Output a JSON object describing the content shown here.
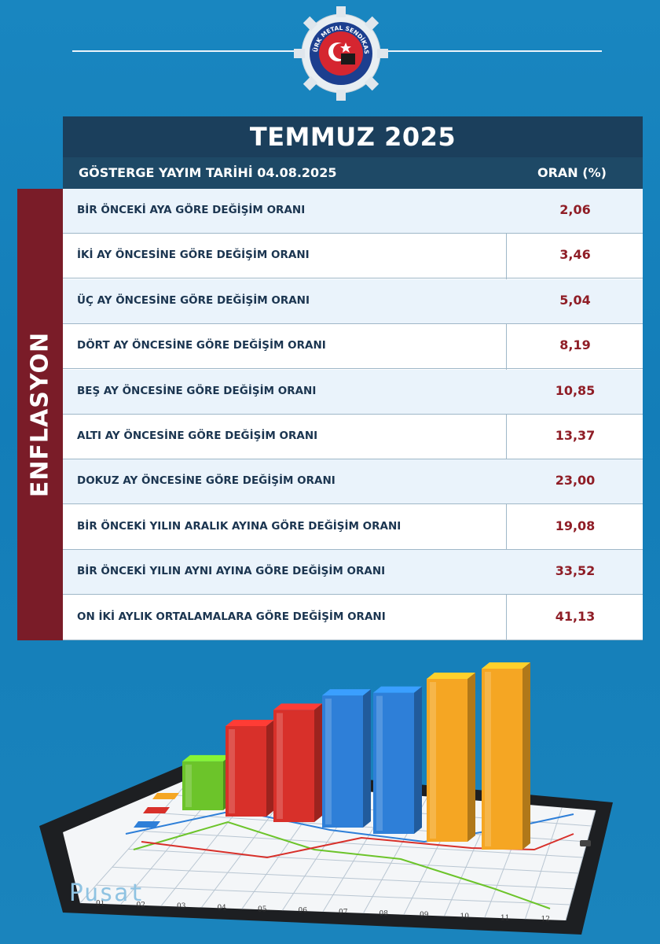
{
  "logo": {
    "text": "TÜRK METAL SENDİKASI",
    "icon": "turk-metal-sendikasi-logo"
  },
  "table": {
    "title": "TEMMUZ 2025",
    "header_left": "GÖSTERGE YAYIM TARİHİ 04.08.2025",
    "header_right": "ORAN (%)",
    "side_label": "ENFLASYON",
    "rows": [
      {
        "label": "BİR ÖNCEKİ AYA GÖRE DEĞİŞİM ORANI",
        "value": "2,06"
      },
      {
        "label": "İKİ AY ÖNCESİNE GÖRE DEĞİŞİM ORANI",
        "value": "3,46"
      },
      {
        "label": "ÜÇ AY ÖNCESİNE GÖRE DEĞİŞİM ORANI",
        "value": "5,04"
      },
      {
        "label": "DÖRT AY ÖNCESİNE GÖRE DEĞİŞİM ORANI",
        "value": "8,19"
      },
      {
        "label": "BEŞ AY ÖNCESİNE GÖRE DEĞİŞİM ORANI",
        "value": "10,85"
      },
      {
        "label": "ALTI AY ÖNCESİNE GÖRE DEĞİŞİM ORANI",
        "value": "13,37"
      },
      {
        "label": "DOKUZ AY ÖNCESİNE GÖRE DEĞİŞİM ORANI",
        "value": "23,00"
      },
      {
        "label": "BİR ÖNCEKİ YILIN ARALIK AYINA GÖRE DEĞİŞİM ORANI",
        "value": "19,08"
      },
      {
        "label": "BİR ÖNCEKİ YILIN AYNI AYINA GÖRE DEĞİŞİM ORANI",
        "value": "33,52"
      },
      {
        "label": "ON İKİ AYLIK ORTALAMALARA GÖRE DEĞİŞİM ORANI",
        "value": "41,13"
      }
    ]
  },
  "illustration": {
    "icon": "bar-chart-tablet-illustration",
    "axis_labels": [
      "01",
      "02",
      "03",
      "04",
      "05",
      "06",
      "07",
      "08",
      "09",
      "10",
      "11",
      "12"
    ],
    "bars": [
      {
        "color": "#6cc42a",
        "level": 0.27
      },
      {
        "color": "#d8302a",
        "level": 0.5
      },
      {
        "color": "#d8302a",
        "level": 0.62
      },
      {
        "color": "#2e7fd8",
        "level": 0.73
      },
      {
        "color": "#2e7fd8",
        "level": 0.78
      },
      {
        "color": "#f5a623",
        "level": 0.9
      },
      {
        "color": "#f5a623",
        "level": 1.0
      }
    ]
  },
  "watermark": "Pusat"
}
